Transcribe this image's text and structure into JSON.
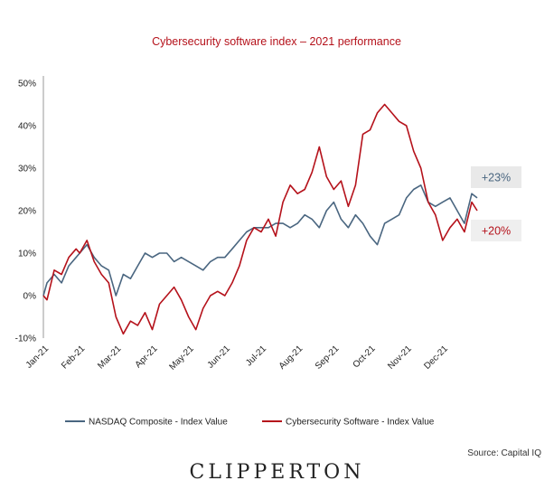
{
  "chart_data": {
    "type": "line",
    "title": "Cybersecurity software index – 2021 performance",
    "y_ticks": [
      "50%",
      "40%",
      "30%",
      "20%",
      "10%",
      "0%",
      "-10%"
    ],
    "ylim": [
      -10,
      50
    ],
    "x_ticks": [
      "Jan-21",
      "Feb-21",
      "Mar-21",
      "Apr-21",
      "May-21",
      "Jun-21",
      "Jul-21",
      "Aug-21",
      "Sep-21",
      "Oct-21",
      "Nov-21",
      "Dec-21"
    ],
    "xlim": [
      0,
      12
    ],
    "legend_position": "bottom",
    "series": [
      {
        "name": "NASDAQ Composite - Index Value",
        "color": "#4a6680",
        "end_label": "+23%",
        "x": [
          0,
          0.1,
          0.3,
          0.5,
          0.7,
          0.9,
          1.0,
          1.2,
          1.4,
          1.6,
          1.8,
          2.0,
          2.2,
          2.4,
          2.6,
          2.8,
          3.0,
          3.2,
          3.4,
          3.6,
          3.8,
          4.0,
          4.2,
          4.4,
          4.6,
          4.8,
          5.0,
          5.2,
          5.4,
          5.6,
          5.8,
          6.0,
          6.2,
          6.4,
          6.6,
          6.8,
          7.0,
          7.2,
          7.4,
          7.6,
          7.8,
          8.0,
          8.2,
          8.4,
          8.6,
          8.8,
          9.0,
          9.2,
          9.4,
          9.6,
          9.8,
          10.0,
          10.2,
          10.4,
          10.6,
          10.8,
          11.0,
          11.2,
          11.4,
          11.6,
          11.8,
          11.95
        ],
        "values": [
          0,
          3,
          5,
          3,
          7,
          9,
          10,
          12,
          9,
          7,
          6,
          0,
          5,
          4,
          7,
          10,
          9,
          10,
          10,
          8,
          9,
          8,
          7,
          6,
          8,
          9,
          9,
          11,
          13,
          15,
          16,
          16,
          16,
          17,
          17,
          16,
          17,
          19,
          18,
          16,
          20,
          22,
          18,
          16,
          19,
          17,
          14,
          12,
          17,
          18,
          19,
          23,
          25,
          26,
          22,
          21,
          22,
          23,
          20,
          17,
          24,
          23
        ]
      },
      {
        "name": "Cybersecurity Software - Index Value",
        "color": "#b5121b",
        "end_label": "+20%",
        "x": [
          0,
          0.1,
          0.3,
          0.5,
          0.7,
          0.9,
          1.0,
          1.2,
          1.4,
          1.6,
          1.8,
          2.0,
          2.2,
          2.4,
          2.6,
          2.8,
          3.0,
          3.2,
          3.4,
          3.6,
          3.8,
          4.0,
          4.2,
          4.4,
          4.6,
          4.8,
          5.0,
          5.2,
          5.4,
          5.6,
          5.8,
          6.0,
          6.2,
          6.4,
          6.6,
          6.8,
          7.0,
          7.2,
          7.4,
          7.6,
          7.8,
          8.0,
          8.2,
          8.4,
          8.6,
          8.8,
          9.0,
          9.2,
          9.4,
          9.6,
          9.8,
          10.0,
          10.2,
          10.4,
          10.6,
          10.8,
          11.0,
          11.2,
          11.4,
          11.6,
          11.8,
          11.95
        ],
        "values": [
          0,
          -1,
          6,
          5,
          9,
          11,
          10,
          13,
          8,
          5,
          3,
          -5,
          -9,
          -6,
          -7,
          -4,
          -8,
          -2,
          0,
          2,
          -1,
          -5,
          -8,
          -3,
          0,
          1,
          0,
          3,
          7,
          13,
          16,
          15,
          18,
          14,
          22,
          26,
          24,
          25,
          29,
          35,
          28,
          25,
          27,
          21,
          26,
          38,
          39,
          43,
          45,
          43,
          41,
          40,
          34,
          30,
          22,
          19,
          13,
          16,
          18,
          15,
          22,
          20
        ]
      }
    ]
  },
  "footer": {
    "source": "Source: Capital IQ",
    "brand": "CLIPPERTON"
  }
}
